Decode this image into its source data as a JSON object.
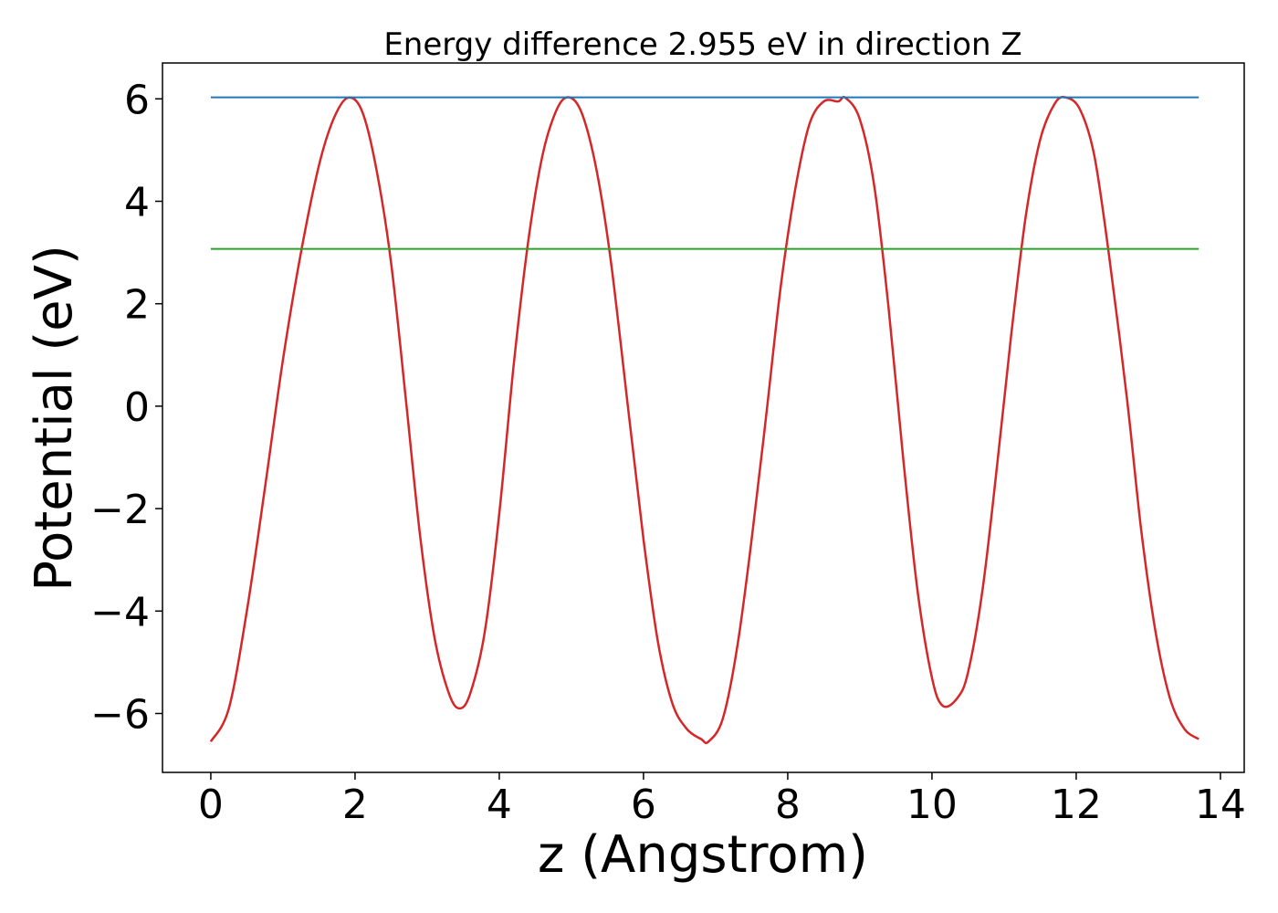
{
  "chart_data": {
    "type": "line",
    "title": "Energy difference 2.955 eV in direction Z",
    "xlabel": "z (Angstrom)",
    "ylabel": "Potential (eV)",
    "xlim": [
      -0.67,
      14.33
    ],
    "ylim": [
      -7.15,
      6.7
    ],
    "xticks": [
      0,
      2,
      4,
      6,
      8,
      10,
      12,
      14
    ],
    "xtick_labels": [
      "0",
      "2",
      "4",
      "6",
      "8",
      "10",
      "12",
      "14"
    ],
    "yticks": [
      -6,
      -4,
      -2,
      0,
      2,
      4,
      6
    ],
    "ytick_labels": [
      "−6",
      "−4",
      "−2",
      "0",
      "2",
      "4",
      "6"
    ],
    "grid": false,
    "series": [
      {
        "color": "#d62728",
        "x": [
          0,
          0.25,
          0.5,
          0.75,
          1.0,
          1.25,
          1.5,
          1.7,
          1.9,
          2.1,
          2.3,
          2.5,
          2.7,
          2.9,
          3.1,
          3.3,
          3.45,
          3.6,
          3.8,
          4.0,
          4.2,
          4.4,
          4.6,
          4.8,
          4.97,
          5.15,
          5.35,
          5.55,
          5.8,
          6.0,
          6.2,
          6.4,
          6.6,
          6.8,
          6.9,
          7.1,
          7.3,
          7.5,
          7.7,
          7.9,
          8.1,
          8.3,
          8.5,
          8.7,
          8.8,
          9.0,
          9.2,
          9.4,
          9.6,
          9.8,
          10.0,
          10.15,
          10.35,
          10.5,
          10.7,
          10.9,
          11.1,
          11.3,
          11.5,
          11.7,
          11.85,
          12.05,
          12.25,
          12.45,
          12.7,
          12.9,
          13.1,
          13.3,
          13.5,
          13.7
        ],
        "y": [
          -6.55,
          -5.9,
          -4.0,
          -1.6,
          0.9,
          3.0,
          4.7,
          5.6,
          6.02,
          5.75,
          4.6,
          2.8,
          0.2,
          -2.5,
          -4.5,
          -5.6,
          -5.9,
          -5.6,
          -4.4,
          -2.1,
          0.8,
          3.2,
          4.9,
          5.8,
          6.03,
          5.7,
          4.6,
          2.8,
          -0.2,
          -2.6,
          -4.6,
          -5.8,
          -6.3,
          -6.5,
          -6.55,
          -6.1,
          -4.7,
          -2.6,
          -0.2,
          2.3,
          4.2,
          5.5,
          5.95,
          5.95,
          6.02,
          5.6,
          4.3,
          1.9,
          -1.0,
          -3.6,
          -5.3,
          -5.85,
          -5.7,
          -5.2,
          -3.6,
          -1.2,
          1.4,
          3.7,
          5.2,
          5.9,
          6.03,
          5.8,
          4.9,
          3.0,
          0.2,
          -2.4,
          -4.4,
          -5.7,
          -6.3,
          -6.5
        ]
      },
      {
        "color": "#1f77b4",
        "x": [
          0,
          13.7
        ],
        "y": [
          6.03,
          6.03
        ]
      },
      {
        "color": "#2ca02c",
        "x": [
          0,
          13.7
        ],
        "y": [
          3.07,
          3.07
        ]
      }
    ]
  }
}
